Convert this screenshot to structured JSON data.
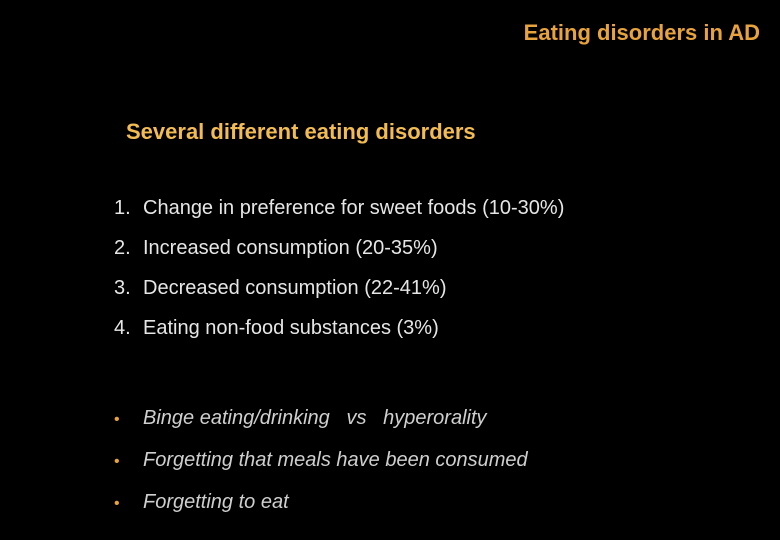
{
  "slide": {
    "title": "Eating disorders in AD",
    "subtitle": "Several different eating disorders",
    "numbered_items": [
      {
        "number": "1.",
        "text": "Change in preference for sweet foods (10-30%)"
      },
      {
        "number": "2.",
        "text": "Increased consumption (20-35%)"
      },
      {
        "number": "3.",
        "text": "Decreased consumption (22-41%)"
      },
      {
        "number": "4.",
        "text": "Eating non-food substances (3%)"
      }
    ],
    "bullet_items": [
      {
        "text": "Binge eating/drinking   vs   hyperorality"
      },
      {
        "text": "Forgetting that meals have been consumed"
      },
      {
        "text": "Forgetting to eat"
      }
    ]
  },
  "colors": {
    "background": "#000000",
    "title": "#E8A33C",
    "subtitle": "#F2BC52",
    "body_text": "#E6E6E6",
    "bullet": "#E8A33C"
  }
}
